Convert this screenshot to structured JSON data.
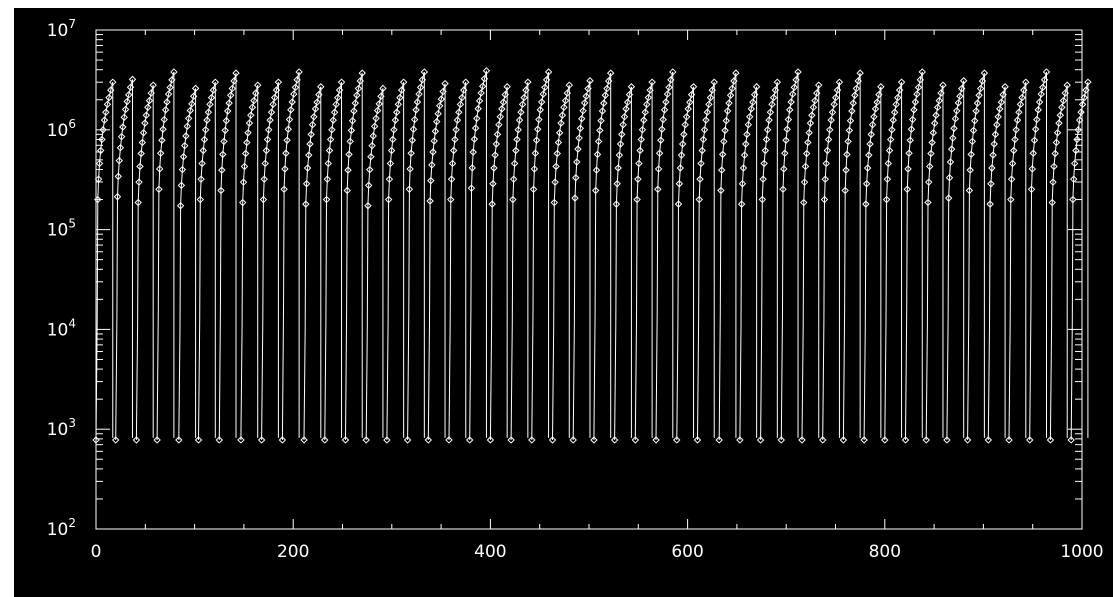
{
  "chart_data": {
    "type": "scatter",
    "title": "",
    "xlabel": "",
    "ylabel": "",
    "xlim": [
      0,
      1000
    ],
    "ylim": [
      100,
      10000000
    ],
    "yscale": "log",
    "grid": false,
    "x_ticks": [
      "0",
      "200",
      "400",
      "600",
      "800",
      "1000"
    ],
    "y_ticks": [
      {
        "base": "10",
        "exp": "2"
      },
      {
        "base": "10",
        "exp": "3"
      },
      {
        "base": "10",
        "exp": "4"
      },
      {
        "base": "10",
        "exp": "5"
      },
      {
        "base": "10",
        "exp": "6"
      },
      {
        "base": "10",
        "exp": "7"
      }
    ],
    "colors": {
      "background": "#000000",
      "foreground": "#ffffff"
    },
    "marker": "diamond",
    "series": [
      {
        "cycle_start_x": [
          0,
          20,
          41,
          62,
          84,
          104,
          125,
          147,
          168,
          189,
          211,
          232,
          253,
          274,
          295,
          316,
          337,
          358,
          379,
          400,
          421,
          442,
          463,
          484,
          505,
          526,
          547,
          568,
          589,
          610,
          632,
          653,
          674,
          695,
          716,
          737,
          758,
          779,
          800,
          821,
          842,
          863,
          884,
          905,
          926,
          947,
          968,
          989
        ],
        "cycle_peak_y": [
          3000000,
          3200000,
          2800000,
          3800000,
          2600000,
          3000000,
          3700000,
          2800000,
          3000000,
          3800000,
          2700000,
          3000000,
          3700000,
          2600000,
          3000000,
          3800000,
          2900000,
          3000000,
          3900000,
          2700000,
          3000000,
          3800000,
          2800000,
          3100000,
          3700000,
          2700000,
          3000000,
          3800000,
          2700000,
          3000000,
          3700000,
          2700000,
          3000000,
          3800000,
          2800000,
          3000000,
          3700000,
          2700000,
          3000000,
          3800000,
          2800000,
          3100000,
          3700000,
          2700000,
          3000000,
          3800000,
          2800000,
          3000000
        ],
        "cycle_floor_y": 780,
        "cycle_shape_y": [
          780,
          12000,
          200000,
          320000,
          460000,
          620000,
          800000,
          1000000,
          1250000,
          1500000,
          1800000,
          2100000,
          2500000,
          3000000
        ],
        "cycle_shape_dx": [
          0,
          1.2,
          1.8,
          2.6,
          3.6,
          4.8,
          6.0,
          7.2,
          8.6,
          10.0,
          11.6,
          13.2,
          15.0,
          17.0
        ]
      }
    ]
  }
}
